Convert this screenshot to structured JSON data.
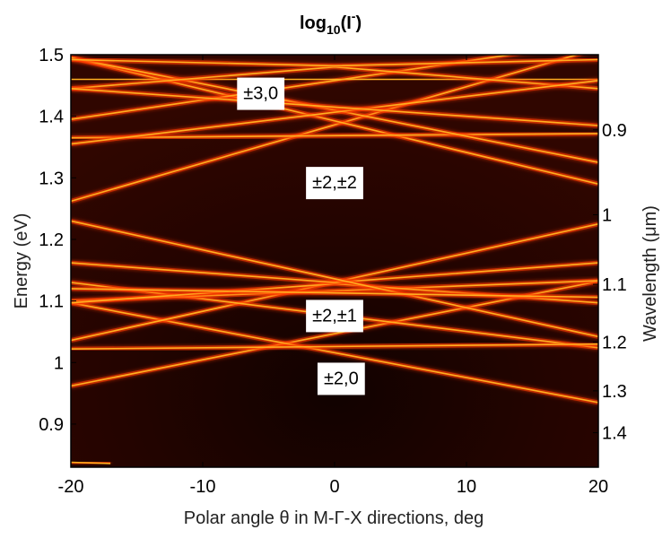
{
  "chart_data": {
    "type": "heatmap",
    "title_main": "log",
    "title_sub": "10",
    "title_tail": "(I",
    "title_bar": "-",
    "title_close": ")",
    "xlabel": "Polar angle θ in M-Γ-X directions,  deg",
    "ylabel": "Energy (eV)",
    "y2label": "Wavelength (μm)",
    "xlim": [
      -20,
      20
    ],
    "ylim": [
      0.83,
      1.5
    ],
    "x_ticks": [
      {
        "value": -20,
        "label": "-20"
      },
      {
        "value": -10,
        "label": "-10"
      },
      {
        "value": 0,
        "label": "0"
      },
      {
        "value": 10,
        "label": "10"
      },
      {
        "value": 20,
        "label": "20"
      }
    ],
    "y_ticks": [
      {
        "value": 0.9,
        "label": "0.9"
      },
      {
        "value": 1.0,
        "label": "1"
      },
      {
        "value": 1.1,
        "label": "1.1"
      },
      {
        "value": 1.2,
        "label": "1.2"
      },
      {
        "value": 1.3,
        "label": "1.3"
      },
      {
        "value": 1.4,
        "label": "1.4"
      },
      {
        "value": 1.5,
        "label": "1.5"
      }
    ],
    "y2_ticks": [
      {
        "energy": 1.378,
        "label": "0.9"
      },
      {
        "energy": 1.24,
        "label": "1"
      },
      {
        "energy": 1.127,
        "label": "1.1"
      },
      {
        "energy": 1.033,
        "label": "1.2"
      },
      {
        "energy": 0.954,
        "label": "1.3"
      },
      {
        "energy": 0.886,
        "label": "1.4"
      }
    ],
    "colormap": {
      "background": "#2a0500",
      "dark": "#120200",
      "line_glow": "#ff3a00",
      "line_core": "#ffb020"
    },
    "bands": [
      {
        "x": [
          -20,
          20
        ],
        "y": [
          0.962,
          1.132
        ]
      },
      {
        "x": [
          -20,
          20
        ],
        "y": [
          1.097,
          0.935
        ]
      },
      {
        "x": [
          -20,
          20
        ],
        "y": [
          1.036,
          1.225
        ]
      },
      {
        "x": [
          -20,
          20
        ],
        "y": [
          1.13,
          1.024
        ]
      },
      {
        "x": [
          -20,
          20
        ],
        "y": [
          1.022,
          1.03
        ]
      },
      {
        "x": [
          -20,
          20
        ],
        "y": [
          1.1,
          1.133
        ]
      },
      {
        "x": [
          -20,
          0,
          20
        ],
        "y": [
          1.097,
          1.128,
          1.097
        ]
      },
      {
        "x": [
          -20,
          0,
          20
        ],
        "y": [
          1.162,
          1.13,
          1.162
        ]
      },
      {
        "x": [
          -20,
          20
        ],
        "y": [
          1.23,
          1.042
        ]
      },
      {
        "x": [
          -20,
          20
        ],
        "y": [
          1.12,
          1.106
        ]
      },
      {
        "x": [
          -20,
          20
        ],
        "y": [
          1.262,
          1.51
        ]
      },
      {
        "x": [
          -20,
          20
        ],
        "y": [
          1.495,
          1.29
        ]
      },
      {
        "x": [
          -20,
          20
        ],
        "y": [
          1.365,
          1.372
        ]
      },
      {
        "x": [
          -20,
          20
        ],
        "y": [
          1.395,
          1.521
        ]
      },
      {
        "x": [
          -20,
          20
        ],
        "y": [
          1.495,
          1.325
        ]
      },
      {
        "x": [
          -20,
          20
        ],
        "y": [
          1.46,
          1.46
        ]
      },
      {
        "x": [
          -20,
          0,
          20
        ],
        "y": [
          1.445,
          1.48,
          1.445
        ]
      },
      {
        "x": [
          -20,
          0,
          20
        ],
        "y": [
          1.492,
          1.482,
          1.492
        ]
      },
      {
        "x": [
          -20,
          20
        ],
        "y": [
          1.355,
          1.458
        ]
      },
      {
        "x": [
          -20,
          20
        ],
        "y": [
          1.445,
          1.385
        ]
      },
      {
        "x": [
          -20,
          -17
        ],
        "y": [
          0.838,
          0.836
        ]
      }
    ],
    "annotations": [
      {
        "text": "±3,0",
        "x": -5.6,
        "y": 1.438
      },
      {
        "text": "±2,±2",
        "x": 0.0,
        "y": 1.293
      },
      {
        "text": "±2,±1",
        "x": 0.0,
        "y": 1.077
      },
      {
        "text": "±2,0",
        "x": 0.5,
        "y": 0.975
      }
    ]
  }
}
